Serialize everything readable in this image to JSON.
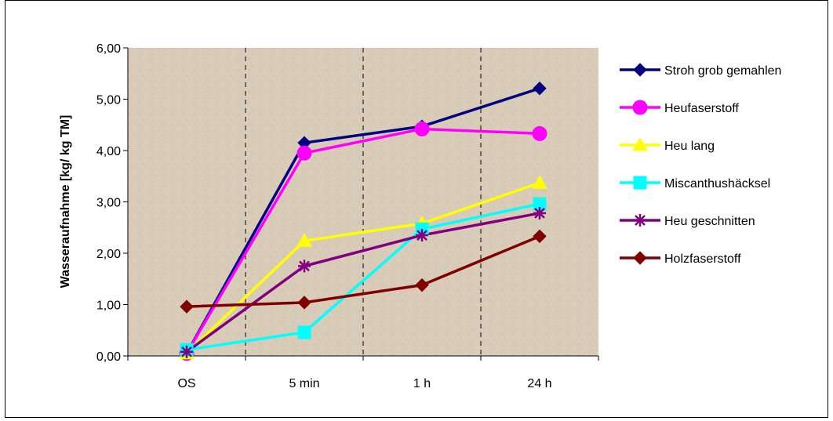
{
  "chart_data": {
    "type": "line",
    "categories": [
      "OS",
      "5 min",
      "1 h",
      "24 h"
    ],
    "ylabel": "Wasseraufnahme [kg/ kg TM]",
    "xlabel": "",
    "ylim": [
      0,
      6
    ],
    "ytick_values": [
      0,
      1,
      2,
      3,
      4,
      5,
      6
    ],
    "ytick_labels": [
      "0,00",
      "1,00",
      "2,00",
      "3,00",
      "4,00",
      "5,00",
      "6,00"
    ],
    "grid": "vertical dashed lines between categories",
    "legend_position": "right",
    "plot_background": "#d8cbb8",
    "series": [
      {
        "name": "Stroh grob gemahlen",
        "values": [
          0.05,
          4.15,
          4.47,
          5.21
        ],
        "color": "#000080",
        "marker": "diamond"
      },
      {
        "name": "Heufaserstoff",
        "values": [
          0.05,
          3.95,
          4.42,
          4.33
        ],
        "color": "#ff00ff",
        "marker": "circle"
      },
      {
        "name": "Heu lang",
        "values": [
          0.05,
          2.24,
          2.58,
          3.37
        ],
        "color": "#ffff00",
        "marker": "triangle"
      },
      {
        "name": "Miscanthushäcksel",
        "values": [
          0.12,
          0.46,
          2.47,
          2.96
        ],
        "color": "#00ffff",
        "marker": "square"
      },
      {
        "name": "Heu geschnitten",
        "values": [
          0.08,
          1.75,
          2.35,
          2.78
        ],
        "color": "#800080",
        "marker": "star"
      },
      {
        "name": "Holzfaserstoff",
        "values": [
          0.96,
          1.04,
          1.38,
          2.33
        ],
        "color": "#800000",
        "marker": "diamond"
      }
    ]
  }
}
